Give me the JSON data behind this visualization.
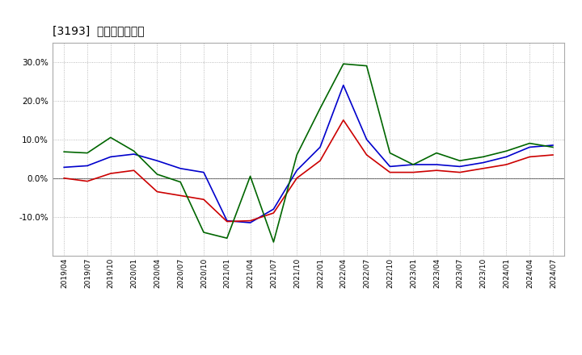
{
  "title": "[3193]  マージンの推移",
  "x_labels": [
    "2019/04",
    "2019/07",
    "2019/10",
    "2020/01",
    "2020/04",
    "2020/07",
    "2020/10",
    "2021/01",
    "2021/04",
    "2021/07",
    "2021/10",
    "2022/01",
    "2022/04",
    "2022/07",
    "2022/10",
    "2023/01",
    "2023/04",
    "2023/07",
    "2023/10",
    "2024/01",
    "2024/04",
    "2024/07"
  ],
  "operating_income": [
    2.8,
    3.2,
    5.5,
    6.2,
    4.5,
    2.5,
    1.5,
    -11.0,
    -11.5,
    -8.0,
    2.0,
    8.0,
    24.0,
    10.0,
    3.0,
    3.5,
    3.5,
    3.0,
    4.0,
    5.5,
    8.0,
    8.5
  ],
  "net_income": [
    0.0,
    -0.8,
    1.2,
    2.0,
    -3.5,
    -4.5,
    -5.5,
    -11.2,
    -11.0,
    -9.0,
    0.0,
    4.5,
    15.0,
    6.0,
    1.5,
    1.5,
    2.0,
    1.5,
    2.5,
    3.5,
    5.5,
    6.0
  ],
  "operating_cf": [
    6.8,
    6.5,
    10.5,
    7.0,
    1.0,
    -1.0,
    -14.0,
    -15.5,
    0.5,
    -16.5,
    6.0,
    18.0,
    29.5,
    29.0,
    6.5,
    3.5,
    6.5,
    4.5,
    5.5,
    7.0,
    9.0,
    8.0
  ],
  "ylim": [
    -20,
    35
  ],
  "yticks": [
    -10,
    0,
    10,
    20,
    30
  ],
  "color_blue": "#0000cc",
  "color_red": "#cc0000",
  "color_green": "#006600",
  "bg_color": "#ffffff",
  "plot_bg_color": "#ffffff",
  "grid_color": "#aaaaaa"
}
